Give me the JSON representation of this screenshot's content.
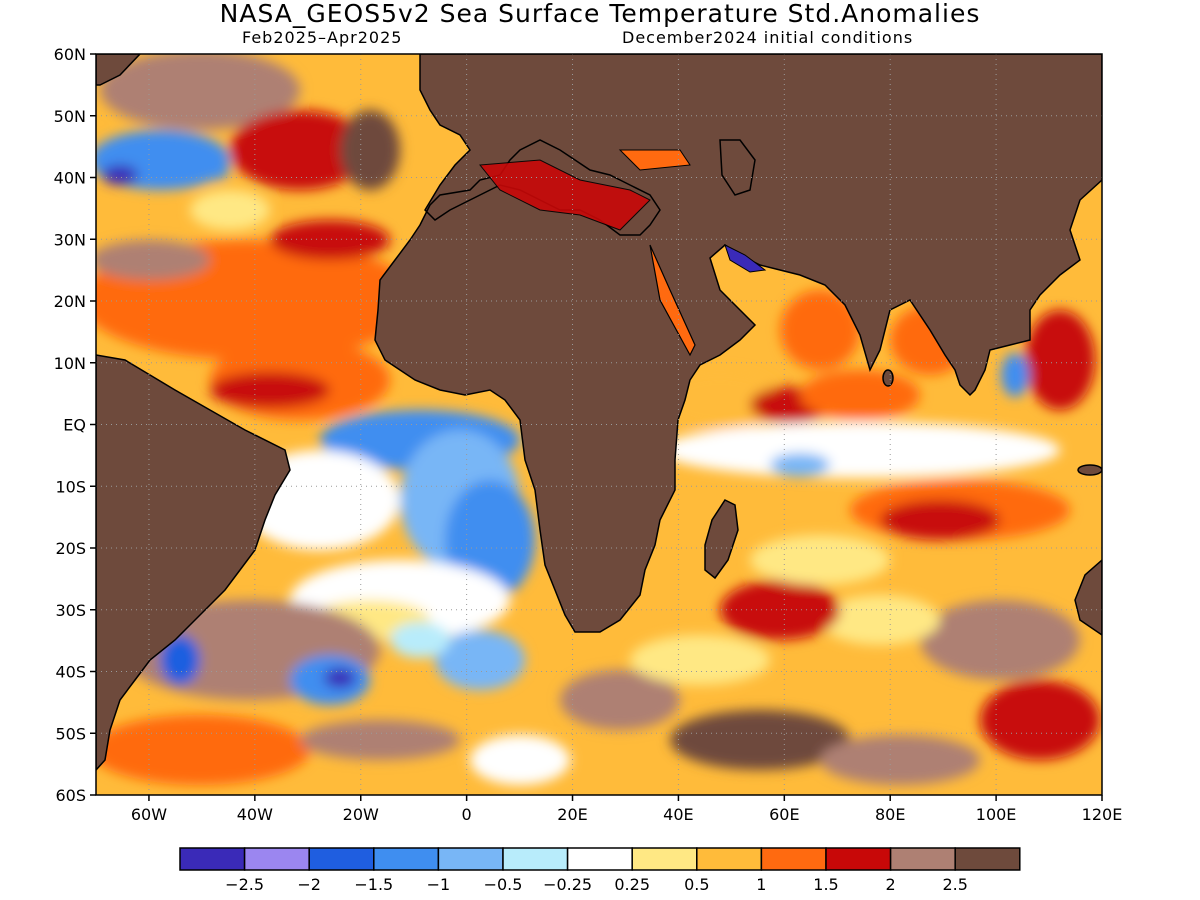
{
  "title": "NASA_GEOS5v2 Sea Surface Temperature Std.Anomalies",
  "subtitle_left": "Feb2025–Apr2025",
  "subtitle_right": "December2024 initial conditions",
  "map": {
    "lat_labels": [
      "60N",
      "50N",
      "40N",
      "30N",
      "20N",
      "10N",
      "EQ",
      "10S",
      "20S",
      "30S",
      "40S",
      "50S",
      "60S"
    ],
    "lon_labels": [
      "60W",
      "40W",
      "20W",
      "0",
      "20E",
      "40E",
      "60E",
      "80E",
      "100E",
      "120E"
    ],
    "land_color": "#6e4a3c",
    "grid": "dotted"
  },
  "colorbar": {
    "colors": [
      "#3a2ab8",
      "#9b86f0",
      "#1f5ee0",
      "#3f8ef0",
      "#78b6f6",
      "#b8ecfb",
      "#ffffff",
      "#ffe884",
      "#ffbb3a",
      "#ff6a10",
      "#c80808",
      "#ae8073",
      "#6e4a3c"
    ],
    "labels": [
      "−2.5",
      "−2",
      "−1.5",
      "−1",
      "−0.5",
      "−0.25",
      "0.25",
      "0.5",
      "1",
      "1.5",
      "2",
      "2.5"
    ]
  }
}
